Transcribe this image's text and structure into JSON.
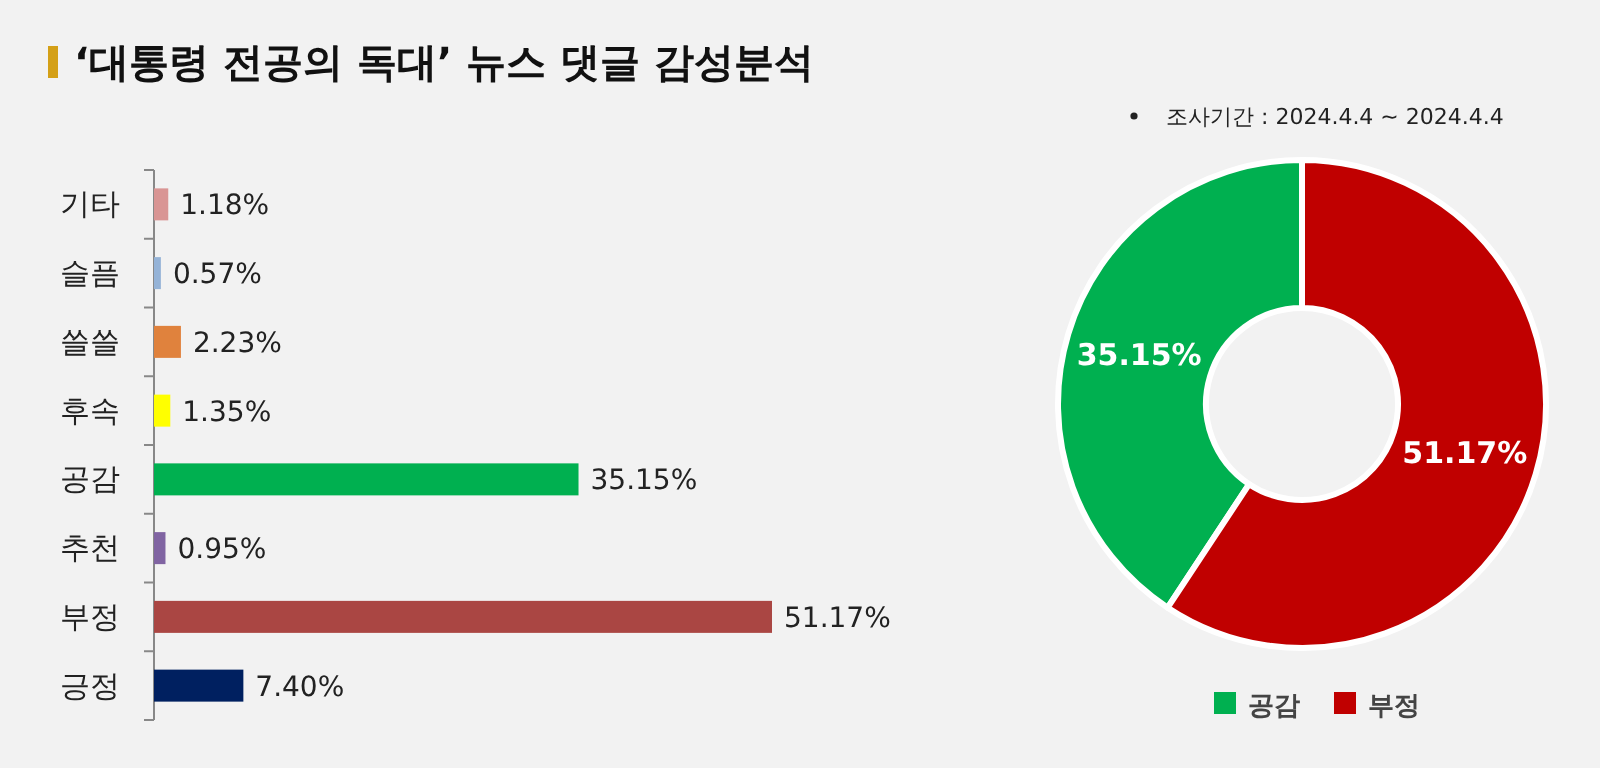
{
  "chart_data": [
    {
      "type": "bar",
      "orientation": "horizontal",
      "title": "‘대통령 전공의 독대’ 뉴스 댓글 감성분석",
      "categories": [
        "기타",
        "슬픔",
        "쓸쓸",
        "후속",
        "공감",
        "추천",
        "부정",
        "긍정"
      ],
      "values": [
        1.18,
        0.57,
        2.23,
        1.35,
        35.15,
        0.95,
        51.17,
        7.4
      ],
      "colors": [
        "#d99594",
        "#95b3d7",
        "#e0823d",
        "#ffff00",
        "#00b050",
        "#8064a2",
        "#aa4643",
        "#002060"
      ],
      "value_labels": [
        "1.18%",
        "0.57%",
        "2.23%",
        "1.35%",
        "35.15%",
        "0.95%",
        "51.17%",
        "7.40%"
      ],
      "legend": false
    },
    {
      "type": "donut",
      "annotations": [
        "조사기간 : 2024.4.4 ~ 2024.4.4"
      ],
      "categories": [
        "공감",
        "부정"
      ],
      "values": [
        35.15,
        51.17
      ],
      "colors": [
        "#00b050",
        "#c00000"
      ],
      "value_labels": [
        "35.15%",
        "51.17%"
      ],
      "legend": "bottom"
    }
  ]
}
